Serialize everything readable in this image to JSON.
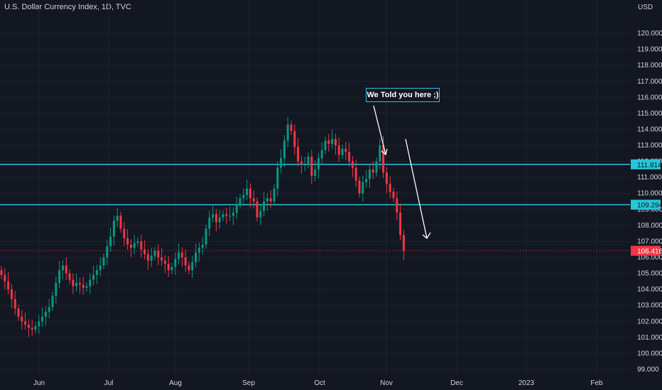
{
  "header": {
    "title": "U.S. Dollar Currency Index, 1D, TVC"
  },
  "chart_data": {
    "type": "candlestick",
    "title": "U.S. Dollar Currency Index, 1D, TVC",
    "currency": "USD",
    "ylim": [
      98.6,
      121.2
    ],
    "y_ticks": [
      "99.000",
      "100.000",
      "101.000",
      "102.000",
      "103.000",
      "104.000",
      "105.000",
      "106.000",
      "107.000",
      "108.000",
      "109.000",
      "110.000",
      "111.000",
      "112.000",
      "113.000",
      "114.000",
      "115.000",
      "116.000",
      "117.000",
      "118.000",
      "119.000",
      "120.000"
    ],
    "x_ticks": [
      "Jun",
      "Jul",
      "Aug",
      "Sep",
      "Oct",
      "Nov",
      "Dec",
      "2023",
      "Feb"
    ],
    "horizontal_levels": [
      {
        "label": "111.814",
        "value": 111.814,
        "color": "#26c6da"
      },
      {
        "label": "109.294",
        "value": 109.294,
        "color": "#26c6da"
      }
    ],
    "last_price": {
      "label": "106.416",
      "value": 106.416,
      "color": "#f23645"
    },
    "annotation": "We Told you here ;)",
    "up_color": "#089981",
    "down_color": "#f23645",
    "closes": [
      104.9,
      104.5,
      104.0,
      103.4,
      102.8,
      102.3,
      102.0,
      101.8,
      101.6,
      101.5,
      101.7,
      102.0,
      102.3,
      102.6,
      102.9,
      103.6,
      104.4,
      105.2,
      105.5,
      105.0,
      104.6,
      104.2,
      104.4,
      104.3,
      104.1,
      104.2,
      104.6,
      104.9,
      105.2,
      105.5,
      106.0,
      106.7,
      107.3,
      108.3,
      108.6,
      107.8,
      107.2,
      106.8,
      106.6,
      106.9,
      107.0,
      106.5,
      106.2,
      105.8,
      106.1,
      106.4,
      106.0,
      105.8,
      105.6,
      105.2,
      105.4,
      105.9,
      106.3,
      106.0,
      105.5,
      105.2,
      105.7,
      106.3,
      106.6,
      106.8,
      107.8,
      108.5,
      108.7,
      108.2,
      108.5,
      108.7,
      108.6,
      108.6,
      108.8,
      109.3,
      109.7,
      109.9,
      110.3,
      109.7,
      109.5,
      108.5,
      108.9,
      109.5,
      109.7,
      109.5,
      110.3,
      111.6,
      112.2,
      113.3,
      114.3,
      113.9,
      112.9,
      112.0,
      111.8,
      111.8,
      112.3,
      111.1,
      111.5,
      112.2,
      112.7,
      113.3,
      113.1,
      113.4,
      113.0,
      112.4,
      112.8,
      112.6,
      112.0,
      111.6,
      110.8,
      110.0,
      110.7,
      110.9,
      111.5,
      111.3,
      112.0,
      113.0,
      111.3,
      110.6,
      110.1,
      109.7,
      108.8,
      107.4,
      106.4
    ]
  }
}
